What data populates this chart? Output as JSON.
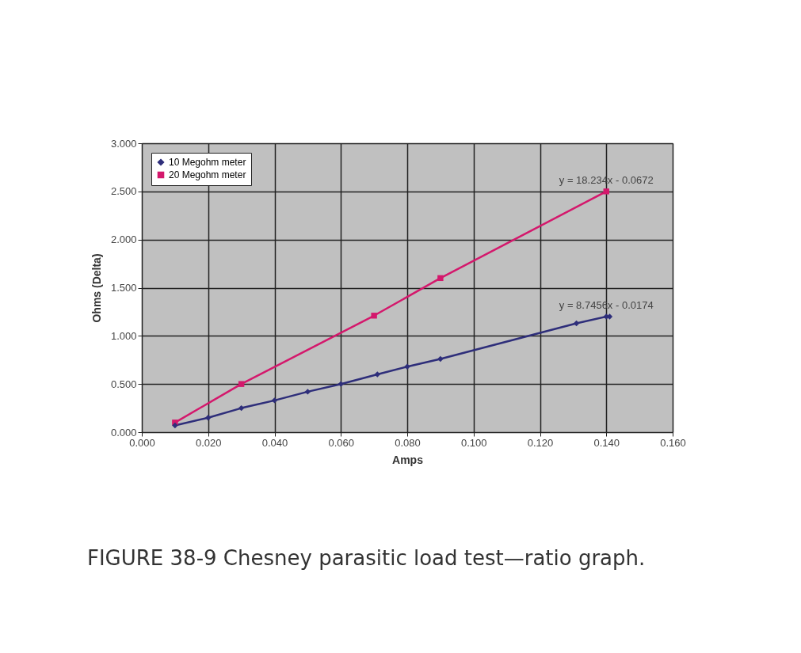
{
  "chart_data": {
    "type": "line",
    "xlabel": "Amps",
    "ylabel": "Ohms (Delta)",
    "xlim": [
      0,
      0.16
    ],
    "ylim": [
      0,
      3
    ],
    "xticks": [
      {
        "value": 0,
        "label": "0.000"
      },
      {
        "value": 0.02,
        "label": "0.020"
      },
      {
        "value": 0.04,
        "label": "0.040"
      },
      {
        "value": 0.06,
        "label": "0.060"
      },
      {
        "value": 0.08,
        "label": "0.080"
      },
      {
        "value": 0.1,
        "label": "0.100"
      },
      {
        "value": 0.12,
        "label": "0.120"
      },
      {
        "value": 0.14,
        "label": "0.140"
      },
      {
        "value": 0.16,
        "label": "0.160"
      }
    ],
    "yticks": [
      {
        "value": 0,
        "label": "0.000"
      },
      {
        "value": 0.5,
        "label": "0.500"
      },
      {
        "value": 1,
        "label": "1.000"
      },
      {
        "value": 1.5,
        "label": "1.500"
      },
      {
        "value": 2,
        "label": "2.000"
      },
      {
        "value": 2.5,
        "label": "2.500"
      },
      {
        "value": 3,
        "label": "3.000"
      }
    ],
    "grid": true,
    "legend": "top left",
    "line_style": "solid",
    "series": [
      {
        "name": "10 Megohm meter",
        "color": "#2e2e7a",
        "marker": "diamond",
        "x": [
          0.01,
          0.02,
          0.03,
          0.04,
          0.05,
          0.06,
          0.071,
          0.08,
          0.09,
          0.131,
          0.14,
          0.141
        ],
        "values": [
          0.07,
          0.15,
          0.25,
          0.33,
          0.42,
          0.5,
          0.6,
          0.68,
          0.76,
          1.13,
          1.2,
          1.2
        ]
      },
      {
        "name": "20 Megohm meter",
        "color": "#d4186c",
        "marker": "square",
        "x": [
          0.01,
          0.03,
          0.07,
          0.09,
          0.14
        ],
        "values": [
          0.1,
          0.5,
          1.21,
          1.6,
          2.5
        ]
      }
    ],
    "annotations": [
      {
        "text": "y = 18.234x - 0.0672",
        "x": 0.14,
        "y": 2.5
      },
      {
        "text": "y = 8.7456x - 0.0174",
        "x": 0.14,
        "y": 1.2
      },
      "FIGURE 38-9 Chesney parasitic load test—ratio graph."
    ]
  }
}
